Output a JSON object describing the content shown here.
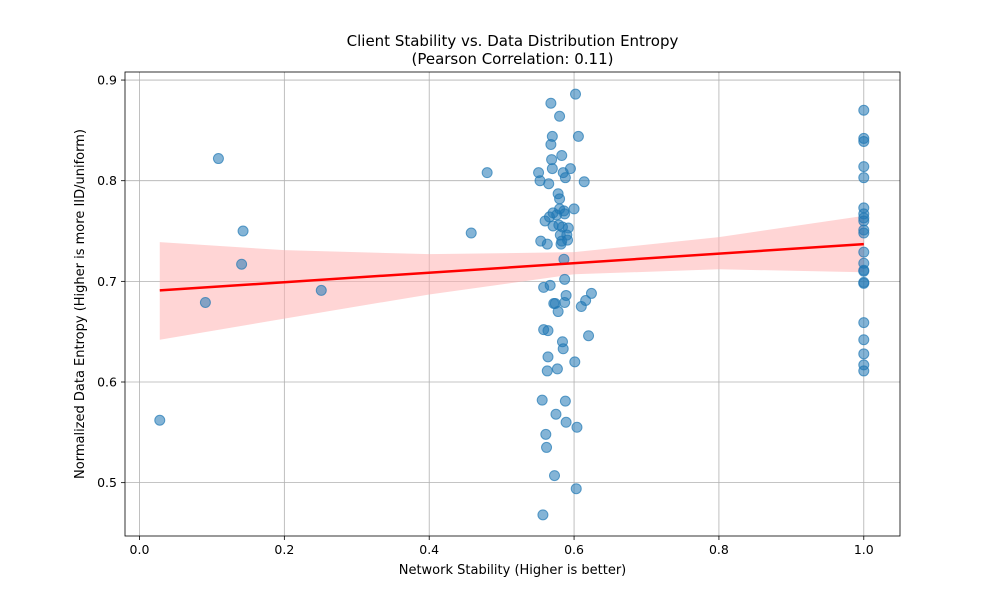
{
  "chart_data": {
    "type": "scatter",
    "title": "Client Stability vs. Data Distribution Entropy",
    "subtitle": "(Pearson Correlation: 0.11)",
    "xlabel": "Network Stability (Higher is better)",
    "ylabel": "Normalized Data Entropy (Higher is more IID/uniform)",
    "xlim": [
      -0.02,
      1.05
    ],
    "ylim": [
      0.447,
      0.908
    ],
    "xticks": [
      0.0,
      0.2,
      0.4,
      0.6,
      0.8,
      1.0
    ],
    "xtick_labels": [
      "0.0",
      "0.2",
      "0.4",
      "0.6",
      "0.8",
      "1.0"
    ],
    "yticks": [
      0.5,
      0.6,
      0.7,
      0.8,
      0.9
    ],
    "ytick_labels": [
      "0.5",
      "0.6",
      "0.7",
      "0.8",
      "0.9"
    ],
    "grid": true,
    "colors": {
      "points": "#1f77b4",
      "regression_line": "#ff0000",
      "confidence_band": "#ffb3b3"
    },
    "points": [
      [
        0.028,
        0.562
      ],
      [
        0.091,
        0.679
      ],
      [
        0.109,
        0.822
      ],
      [
        0.141,
        0.717
      ],
      [
        0.143,
        0.75
      ],
      [
        0.251,
        0.691
      ],
      [
        0.458,
        0.748
      ],
      [
        0.48,
        0.808
      ],
      [
        0.551,
        0.808
      ],
      [
        0.553,
        0.8
      ],
      [
        0.554,
        0.74
      ],
      [
        0.556,
        0.582
      ],
      [
        0.557,
        0.468
      ],
      [
        0.558,
        0.694
      ],
      [
        0.558,
        0.652
      ],
      [
        0.56,
        0.76
      ],
      [
        0.561,
        0.548
      ],
      [
        0.562,
        0.535
      ],
      [
        0.563,
        0.737
      ],
      [
        0.563,
        0.611
      ],
      [
        0.564,
        0.625
      ],
      [
        0.564,
        0.651
      ],
      [
        0.565,
        0.797
      ],
      [
        0.566,
        0.764
      ],
      [
        0.567,
        0.696
      ],
      [
        0.568,
        0.836
      ],
      [
        0.568,
        0.877
      ],
      [
        0.569,
        0.821
      ],
      [
        0.57,
        0.844
      ],
      [
        0.57,
        0.812
      ],
      [
        0.571,
        0.768
      ],
      [
        0.571,
        0.755
      ],
      [
        0.572,
        0.678
      ],
      [
        0.573,
        0.507
      ],
      [
        0.574,
        0.678
      ],
      [
        0.575,
        0.568
      ],
      [
        0.576,
        0.766
      ],
      [
        0.577,
        0.613
      ],
      [
        0.578,
        0.67
      ],
      [
        0.578,
        0.787
      ],
      [
        0.579,
        0.756
      ],
      [
        0.58,
        0.864
      ],
      [
        0.58,
        0.772
      ],
      [
        0.58,
        0.782
      ],
      [
        0.581,
        0.746
      ],
      [
        0.582,
        0.737
      ],
      [
        0.583,
        0.825
      ],
      [
        0.583,
        0.74
      ],
      [
        0.584,
        0.64
      ],
      [
        0.584,
        0.754
      ],
      [
        0.585,
        0.633
      ],
      [
        0.585,
        0.808
      ],
      [
        0.586,
        0.77
      ],
      [
        0.586,
        0.722
      ],
      [
        0.587,
        0.679
      ],
      [
        0.587,
        0.767
      ],
      [
        0.587,
        0.702
      ],
      [
        0.588,
        0.581
      ],
      [
        0.588,
        0.803
      ],
      [
        0.589,
        0.686
      ],
      [
        0.589,
        0.56
      ],
      [
        0.59,
        0.746
      ],
      [
        0.591,
        0.741
      ],
      [
        0.592,
        0.753
      ],
      [
        0.595,
        0.812
      ],
      [
        0.6,
        0.772
      ],
      [
        0.601,
        0.62
      ],
      [
        0.602,
        0.886
      ],
      [
        0.603,
        0.494
      ],
      [
        0.604,
        0.555
      ],
      [
        0.606,
        0.844
      ],
      [
        0.61,
        0.675
      ],
      [
        0.614,
        0.799
      ],
      [
        0.616,
        0.681
      ],
      [
        0.62,
        0.646
      ],
      [
        0.624,
        0.688
      ],
      [
        1.0,
        0.87
      ],
      [
        1.0,
        0.842
      ],
      [
        1.0,
        0.839
      ],
      [
        1.0,
        0.814
      ],
      [
        1.0,
        0.803
      ],
      [
        1.0,
        0.773
      ],
      [
        1.0,
        0.767
      ],
      [
        1.0,
        0.763
      ],
      [
        1.0,
        0.76
      ],
      [
        1.0,
        0.751
      ],
      [
        1.0,
        0.748
      ],
      [
        1.0,
        0.729
      ],
      [
        1.0,
        0.718
      ],
      [
        1.0,
        0.711
      ],
      [
        1.0,
        0.71
      ],
      [
        1.0,
        0.699
      ],
      [
        1.0,
        0.698
      ],
      [
        1.0,
        0.659
      ],
      [
        1.0,
        0.642
      ],
      [
        1.0,
        0.628
      ],
      [
        1.0,
        0.617
      ],
      [
        1.0,
        0.611
      ]
    ],
    "regression": {
      "x": [
        0.028,
        1.0
      ],
      "y": [
        0.691,
        0.737
      ]
    },
    "confidence_band": [
      [
        0.028,
        0.642,
        0.739
      ],
      [
        0.2,
        0.663,
        0.731
      ],
      [
        0.4,
        0.687,
        0.727
      ],
      [
        0.6,
        0.707,
        0.729
      ],
      [
        0.8,
        0.712,
        0.744
      ],
      [
        1.0,
        0.709,
        0.765
      ]
    ]
  }
}
